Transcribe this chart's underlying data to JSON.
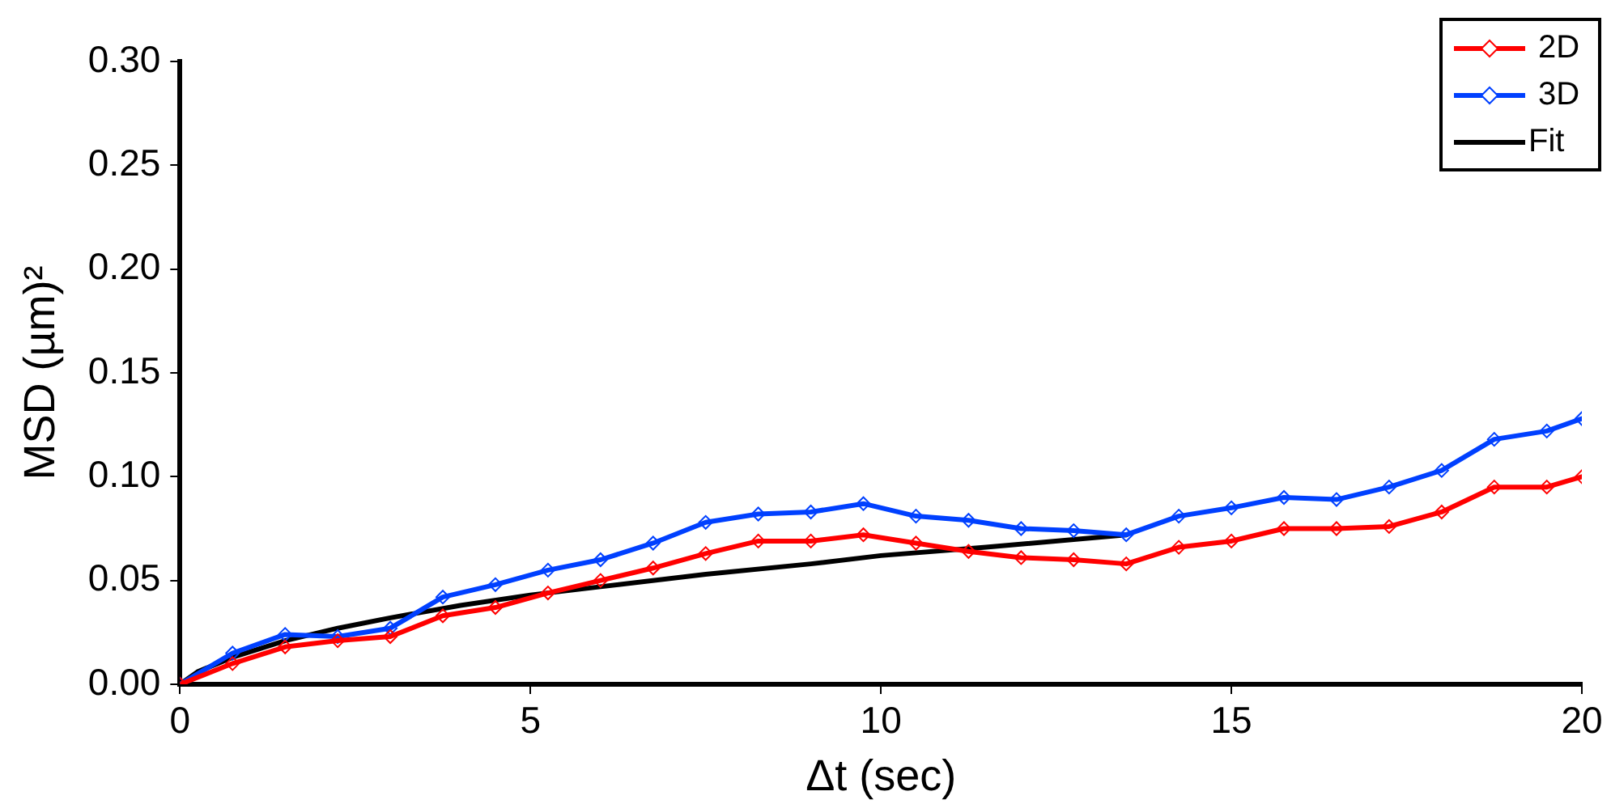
{
  "chart_data": {
    "type": "line",
    "xlabel": "Δt (sec)",
    "ylabel": "MSD (µm)²",
    "xlim": [
      0,
      20
    ],
    "xticks": [
      0,
      5,
      10,
      15,
      20
    ],
    "ylim": [
      0,
      0.3
    ],
    "yticks": [
      {
        "value": 0,
        "label": "0.00"
      },
      {
        "value": 0.05,
        "label": "0.05"
      },
      {
        "value": 0.1,
        "label": "0.10"
      },
      {
        "value": 0.15,
        "label": "0.15"
      },
      {
        "value": 0.2,
        "label": "0.20"
      },
      {
        "value": 0.25,
        "label": "0.25"
      },
      {
        "value": 0.3,
        "label": "0.30"
      }
    ],
    "grid": false,
    "legend": "top right",
    "line_style": "solid",
    "series": [
      {
        "name": "2D",
        "color": "#ff0000",
        "marker": "diamond",
        "x": [
          0,
          0.75,
          1.5,
          2.25,
          3,
          3.75,
          4.5,
          5.25,
          6,
          6.75,
          7.5,
          8.25,
          9,
          9.75,
          10.5,
          11.25,
          12,
          12.75,
          13.5,
          14.25,
          15,
          15.75,
          16.5,
          17.25,
          18,
          18.75,
          19.5,
          20
        ],
        "values": [
          0,
          0.01,
          0.018,
          0.021,
          0.023,
          0.033,
          0.037,
          0.044,
          0.05,
          0.056,
          0.063,
          0.069,
          0.069,
          0.072,
          0.068,
          0.064,
          0.061,
          0.06,
          0.058,
          0.066,
          0.069,
          0.075,
          0.075,
          0.076,
          0.083,
          0.095,
          0.095,
          0.1
        ]
      },
      {
        "name": "3D",
        "color": "#0040ff",
        "marker": "diamond",
        "x": [
          0,
          0.75,
          1.5,
          2.25,
          3,
          3.75,
          4.5,
          5.25,
          6,
          6.75,
          7.5,
          8.25,
          9,
          9.75,
          10.5,
          11.25,
          12,
          12.75,
          13.5,
          14.25,
          15,
          15.75,
          16.5,
          17.25,
          18,
          18.75,
          19.5,
          20
        ],
        "values": [
          0,
          0.015,
          0.024,
          0.023,
          0.027,
          0.042,
          0.048,
          0.055,
          0.06,
          0.068,
          0.078,
          0.082,
          0.083,
          0.087,
          0.081,
          0.079,
          0.075,
          0.074,
          0.072,
          0.081,
          0.085,
          0.09,
          0.089,
          0.095,
          0.103,
          0.118,
          0.122,
          0.128
        ]
      },
      {
        "name": "Fit",
        "color": "#000000",
        "marker": "none",
        "x": [
          0,
          0.25,
          0.75,
          1.5,
          2.25,
          3,
          4,
          5,
          6,
          7.5,
          9,
          10,
          11.5,
          13.5
        ],
        "values": [
          0,
          0.006,
          0.013,
          0.021,
          0.027,
          0.032,
          0.038,
          0.043,
          0.047,
          0.053,
          0.058,
          0.062,
          0.066,
          0.072
        ]
      }
    ]
  }
}
